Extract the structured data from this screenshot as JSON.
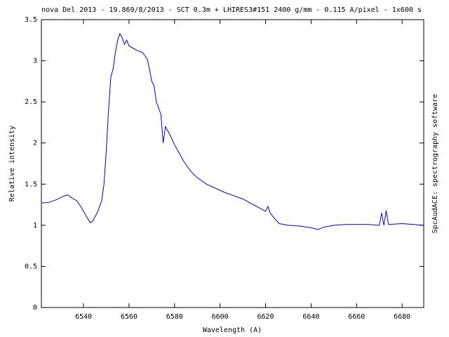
{
  "chart_data": {
    "type": "line",
    "title": "nova Del 2013 - 19.869/8/2013 - SCT 0.3m + LHIRES3#151 2400 g/mm - 0.115 A/pixel - 1x600 s",
    "x_label": "Wavelength (A)",
    "y_label": "Relative intensity",
    "side_label": "SpcAudACE: spectrography software",
    "x": [
      6521.5,
      6525,
      6528,
      6531,
      6533,
      6535,
      6537,
      6539,
      6541,
      6543,
      6544,
      6546,
      6548,
      6549,
      6550,
      6551,
      6552,
      6553,
      6554,
      6555,
      6556,
      6557,
      6558,
      6559,
      6560,
      6562,
      6564,
      6566,
      6568,
      6569,
      6570,
      6571,
      6572,
      6574,
      6575,
      6576,
      6578,
      6580,
      6582,
      6584,
      6586,
      6588,
      6590,
      6594,
      6598,
      6602,
      6606,
      6610,
      6614,
      6618,
      6620,
      6621,
      6622,
      6624,
      6626,
      6630,
      6635,
      6640,
      6643,
      6646,
      6650,
      6655,
      6660,
      6665,
      6670,
      6671,
      6672,
      6673,
      6674,
      6680,
      6685,
      6689.5
    ],
    "series": [
      {
        "color": "#0000c8",
        "values": [
          1.27,
          1.28,
          1.31,
          1.35,
          1.37,
          1.33,
          1.3,
          1.22,
          1.12,
          1.03,
          1.05,
          1.15,
          1.3,
          1.5,
          1.9,
          2.4,
          2.8,
          2.9,
          3.1,
          3.25,
          3.33,
          3.28,
          3.2,
          3.25,
          3.18,
          3.15,
          3.12,
          3.1,
          3.02,
          2.9,
          2.75,
          2.7,
          2.5,
          2.35,
          2.0,
          2.2,
          2.1,
          1.98,
          1.88,
          1.78,
          1.7,
          1.63,
          1.58,
          1.5,
          1.45,
          1.4,
          1.36,
          1.32,
          1.26,
          1.2,
          1.17,
          1.23,
          1.15,
          1.08,
          1.02,
          1.0,
          0.99,
          0.97,
          0.95,
          0.98,
          1.0,
          1.01,
          1.01,
          1.01,
          1.0,
          1.15,
          1.0,
          1.18,
          1.01,
          1.02,
          1.01,
          1.0
        ]
      }
    ],
    "xlim": [
      6521.5,
      6689.5
    ],
    "ylim": [
      0,
      3.5
    ],
    "xticks": [
      6540,
      6560,
      6580,
      6600,
      6620,
      6640,
      6660,
      6680
    ],
    "yticks": [
      0,
      0.5,
      1,
      1.5,
      2,
      2.5,
      3,
      3.5
    ],
    "grid": false
  }
}
